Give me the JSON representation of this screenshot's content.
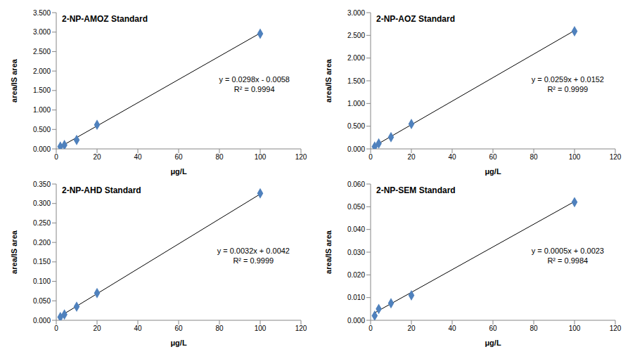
{
  "chart_data": [
    {
      "type": "scatter",
      "title": "2-NP-AMOZ Standard",
      "x_label": "μg/L",
      "y_label": "area/IS area",
      "x": [
        2,
        4,
        10,
        20,
        100
      ],
      "values": [
        0.06,
        0.1,
        0.23,
        0.62,
        2.96
      ],
      "color": "#4f81bd",
      "marker": "diamond",
      "grid": false,
      "trendline": {
        "slope": 0.0298,
        "intercept": -0.0058
      },
      "annotations": [
        "y = 0.0298x - 0.0058",
        "R² = 0.9994"
      ],
      "xlim": [
        0,
        120
      ],
      "xticks": [
        0,
        20,
        40,
        60,
        80,
        100,
        120
      ],
      "ylim": [
        0,
        3.5
      ],
      "yticks": [
        {
          "value": 0,
          "label": "0.000"
        },
        {
          "value": 0.5,
          "label": "0.500"
        },
        {
          "value": 1,
          "label": "1.000"
        },
        {
          "value": 1.5,
          "label": "1.500"
        },
        {
          "value": 2,
          "label": "2.000"
        },
        {
          "value": 2.5,
          "label": "2.500"
        },
        {
          "value": 3,
          "label": "3.000"
        },
        {
          "value": 3.5,
          "label": "3.500"
        }
      ]
    },
    {
      "type": "scatter",
      "title": "2-NP-AOZ Standard",
      "x_label": "μg/L",
      "y_label": "area/IS area",
      "x": [
        2,
        4,
        10,
        20,
        100
      ],
      "values": [
        0.05,
        0.12,
        0.26,
        0.55,
        2.59
      ],
      "color": "#4f81bd",
      "marker": "diamond",
      "grid": false,
      "trendline": {
        "slope": 0.0259,
        "intercept": 0.0152
      },
      "annotations": [
        "y = 0.0259x + 0.0152",
        "R² = 0.9999"
      ],
      "xlim": [
        0,
        120
      ],
      "xticks": [
        0,
        20,
        40,
        60,
        80,
        100,
        120
      ],
      "ylim": [
        0,
        3
      ],
      "yticks": [
        {
          "value": 0,
          "label": "0.000"
        },
        {
          "value": 0.5,
          "label": "0.500"
        },
        {
          "value": 1,
          "label": "1.000"
        },
        {
          "value": 1.5,
          "label": "1.500"
        },
        {
          "value": 2,
          "label": "2.000"
        },
        {
          "value": 2.5,
          "label": "2.500"
        },
        {
          "value": 3,
          "label": "3.000"
        }
      ]
    },
    {
      "type": "scatter",
      "title": "2-NP-AHD Standard",
      "x_label": "μg/L",
      "y_label": "area/IS area",
      "x": [
        2,
        4,
        10,
        20,
        100
      ],
      "values": [
        0.008,
        0.015,
        0.035,
        0.07,
        0.326
      ],
      "color": "#4f81bd",
      "marker": "diamond",
      "grid": false,
      "trendline": {
        "slope": 0.0032,
        "intercept": 0.0042
      },
      "annotations": [
        "y = 0.0032x + 0.0042",
        "R² = 0.9999"
      ],
      "xlim": [
        0,
        120
      ],
      "xticks": [
        0,
        20,
        40,
        60,
        80,
        100,
        120
      ],
      "ylim": [
        0,
        0.35
      ],
      "yticks": [
        {
          "value": 0,
          "label": "0.000"
        },
        {
          "value": 0.05,
          "label": "0.050"
        },
        {
          "value": 0.1,
          "label": "0.100"
        },
        {
          "value": 0.15,
          "label": "0.150"
        },
        {
          "value": 0.2,
          "label": "0.200"
        },
        {
          "value": 0.25,
          "label": "0.250"
        },
        {
          "value": 0.3,
          "label": "0.300"
        },
        {
          "value": 0.35,
          "label": "0.350"
        }
      ]
    },
    {
      "type": "scatter",
      "title": "2-NP-SEM Standard",
      "x_label": "μg/L",
      "y_label": "area/IS area",
      "x": [
        2,
        4,
        10,
        20,
        100
      ],
      "values": [
        0.002,
        0.005,
        0.0075,
        0.011,
        0.052
      ],
      "color": "#4f81bd",
      "marker": "diamond",
      "grid": false,
      "trendline": {
        "slope": 0.0005,
        "intercept": 0.0023
      },
      "annotations": [
        "y = 0.0005x + 0.0023",
        "R² = 0.9984"
      ],
      "xlim": [
        0,
        120
      ],
      "xticks": [
        0,
        20,
        40,
        60,
        80,
        100,
        120
      ],
      "ylim": [
        0,
        0.06
      ],
      "yticks": [
        {
          "value": 0,
          "label": "0.000"
        },
        {
          "value": 0.01,
          "label": "0.010"
        },
        {
          "value": 0.02,
          "label": "0.020"
        },
        {
          "value": 0.03,
          "label": "0.030"
        },
        {
          "value": 0.04,
          "label": "0.040"
        },
        {
          "value": 0.05,
          "label": "0.050"
        },
        {
          "value": 0.06,
          "label": "0.060"
        }
      ]
    }
  ]
}
